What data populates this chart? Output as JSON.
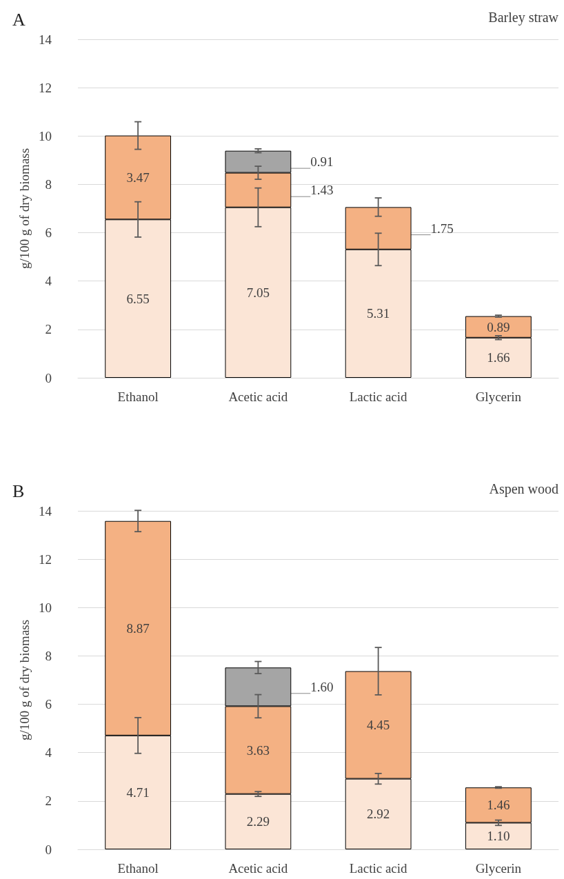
{
  "chart_data": [
    {
      "type": "bar",
      "title": "A",
      "annotations": [
        "Barley straw"
      ],
      "ylabel": "g/100 g of dry biomass",
      "categories": [
        "Ethanol",
        "Acetic acid",
        "Lactic acid",
        "Glycerin"
      ],
      "stacked": true,
      "data_labels": true,
      "grid": "y",
      "ylim": [
        0,
        14
      ],
      "yticks": [
        0,
        2,
        4,
        6,
        8,
        10,
        12,
        14
      ],
      "series": [
        {
          "color": "#fbe5d6",
          "values": [
            6.55,
            7.05,
            5.31,
            1.66
          ],
          "errors": [
            0.73,
            0.8,
            0.67,
            0.08
          ]
        },
        {
          "color": "#f4b183",
          "values": [
            3.47,
            1.43,
            1.75,
            0.89
          ],
          "errors": [
            0.57,
            0.27,
            0.38,
            0.04
          ]
        },
        {
          "color": "#a5a5a5",
          "values": [
            null,
            0.91,
            null,
            null
          ],
          "errors": [
            null,
            0.08,
            null,
            null
          ]
        }
      ]
    },
    {
      "type": "bar",
      "title": "B",
      "annotations": [
        "Aspen wood"
      ],
      "ylabel": "g/100 g of dry biomass",
      "categories": [
        "Ethanol",
        "Acetic acid",
        "Lactic acid",
        "Glycerin"
      ],
      "stacked": true,
      "data_labels": true,
      "grid": "y",
      "ylim": [
        0,
        14
      ],
      "yticks": [
        0,
        2,
        4,
        6,
        8,
        10,
        12,
        14
      ],
      "series": [
        {
          "color": "#fbe5d6",
          "values": [
            4.71,
            2.29,
            2.92,
            1.1
          ],
          "value_labels": [
            "4.71",
            "2.29",
            "2.92",
            "1.10"
          ],
          "errors": [
            0.74,
            0.1,
            0.22,
            0.11
          ]
        },
        {
          "color": "#f4b183",
          "values": [
            8.87,
            3.63,
            4.45,
            1.46
          ],
          "errors": [
            0.44,
            0.48,
            0.98,
            0.03
          ]
        },
        {
          "color": "#a5a5a5",
          "values": [
            null,
            1.6,
            null,
            null
          ],
          "value_labels": [
            null,
            "1.60",
            null,
            null
          ],
          "errors": [
            null,
            0.25,
            null,
            null
          ]
        }
      ]
    }
  ]
}
